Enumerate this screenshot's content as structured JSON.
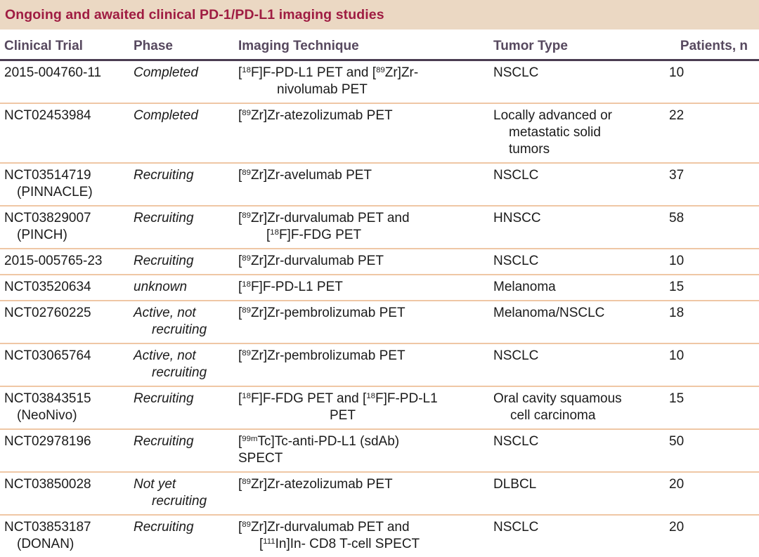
{
  "title": "Ongoing and awaited clinical PD-1/PD-L1 imaging studies",
  "colors": {
    "title_bg": "#ebd8c3",
    "title_text": "#9f1c42",
    "header_text": "#57495f",
    "header_rule": "#4a3c51",
    "row_rule": "#efc7a5",
    "body_text": "#1b1b1b"
  },
  "table": {
    "columns": [
      {
        "key": "trial",
        "label": "Clinical Trial"
      },
      {
        "key": "phase",
        "label": "Phase"
      },
      {
        "key": "technique",
        "label": "Imaging Technique"
      },
      {
        "key": "tumor",
        "label": "Tumor Type"
      },
      {
        "key": "patients",
        "label": "Patients, n"
      }
    ],
    "rows": [
      {
        "trial": [
          [
            "2015-004760-11",
            0
          ]
        ],
        "phase": [
          [
            "Completed",
            0
          ]
        ],
        "technique": [
          [
            "[^18^F]F-PD-L1 PET and [^89^Zr]Zr-",
            0
          ],
          [
            "nivolumab PET",
            55
          ]
        ],
        "tumor": [
          [
            "NSCLC",
            0
          ]
        ],
        "patients": "10"
      },
      {
        "trial": [
          [
            "NCT02453984",
            0
          ]
        ],
        "phase": [
          [
            "Completed",
            0
          ]
        ],
        "technique": [
          [
            "[^89^Zr]Zr-atezolizumab PET",
            0
          ]
        ],
        "tumor": [
          [
            "Locally advanced or",
            0
          ],
          [
            "metastatic solid",
            22
          ],
          [
            "tumors",
            22
          ]
        ],
        "patients": "22"
      },
      {
        "trial": [
          [
            "NCT03514719",
            0
          ],
          [
            "(PINNACLE)",
            18
          ]
        ],
        "phase": [
          [
            "Recruiting",
            0
          ]
        ],
        "technique": [
          [
            "[^89^Zr]Zr-avelumab PET",
            0
          ]
        ],
        "tumor": [
          [
            "NSCLC",
            0
          ]
        ],
        "patients": "37"
      },
      {
        "trial": [
          [
            "NCT03829007",
            0
          ],
          [
            "(PINCH)",
            18
          ]
        ],
        "phase": [
          [
            "Recruiting",
            0
          ]
        ],
        "technique": [
          [
            "[^89^Zr]Zr-durvalumab PET and",
            0
          ],
          [
            "[^18^F]F-FDG PET",
            40
          ]
        ],
        "tumor": [
          [
            "HNSCC",
            0
          ]
        ],
        "patients": "58"
      },
      {
        "trial": [
          [
            "2015-005765-23",
            0
          ]
        ],
        "phase": [
          [
            "Recruiting",
            0
          ]
        ],
        "technique": [
          [
            "[^89^Zr]Zr-durvalumab PET",
            0
          ]
        ],
        "tumor": [
          [
            "NSCLC",
            0
          ]
        ],
        "patients": "10"
      },
      {
        "trial": [
          [
            "NCT03520634",
            0
          ]
        ],
        "phase": [
          [
            "unknown",
            0
          ]
        ],
        "technique": [
          [
            "[^18^F]F-PD-L1 PET",
            0
          ]
        ],
        "tumor": [
          [
            "Melanoma",
            0
          ]
        ],
        "patients": "15"
      },
      {
        "trial": [
          [
            "NCT02760225",
            0
          ]
        ],
        "phase": [
          [
            "Active, not",
            0
          ],
          [
            "recruiting",
            26
          ]
        ],
        "technique": [
          [
            "[^89^Zr]Zr-pembrolizumab PET",
            0
          ]
        ],
        "tumor": [
          [
            "Melanoma/NSCLC",
            0
          ]
        ],
        "patients": "18"
      },
      {
        "trial": [
          [
            "NCT03065764",
            0
          ]
        ],
        "phase": [
          [
            "Active, not",
            0
          ],
          [
            "recruiting",
            26
          ]
        ],
        "technique": [
          [
            "[^89^Zr]Zr-pembrolizumab PET",
            0
          ]
        ],
        "tumor": [
          [
            "NSCLC",
            0
          ]
        ],
        "patients": "10"
      },
      {
        "trial": [
          [
            "NCT03843515",
            0
          ],
          [
            "(NeoNivo)",
            18
          ]
        ],
        "phase": [
          [
            "Recruiting",
            0
          ]
        ],
        "technique": [
          [
            "[^18^F]F-FDG PET and [^18^F]F-PD-L1",
            0
          ],
          [
            "PET",
            130
          ]
        ],
        "tumor": [
          [
            "Oral cavity squamous",
            0
          ],
          [
            "cell carcinoma",
            24
          ]
        ],
        "patients": "15"
      },
      {
        "trial": [
          [
            "NCT02978196",
            0
          ]
        ],
        "phase": [
          [
            "Recruiting",
            0
          ]
        ],
        "technique": [
          [
            "[^99m^Tc]Tc-anti-PD-L1 (sdAb)",
            0
          ],
          [
            "SPECT",
            0
          ]
        ],
        "tumor": [
          [
            "NSCLC",
            0
          ]
        ],
        "patients": "50"
      },
      {
        "trial": [
          [
            "NCT03850028",
            0
          ]
        ],
        "phase": [
          [
            "Not yet",
            0
          ],
          [
            "recruiting",
            26
          ]
        ],
        "technique": [
          [
            "[^89^Zr]Zr-atezolizumab PET",
            0
          ]
        ],
        "tumor": [
          [
            "DLBCL",
            0
          ]
        ],
        "patients": "20"
      },
      {
        "trial": [
          [
            "NCT03853187",
            0
          ],
          [
            "(DONAN)",
            18
          ]
        ],
        "phase": [
          [
            "Recruiting",
            0
          ]
        ],
        "technique": [
          [
            "[^89^Zr]Zr-durvalumab PET and",
            0
          ],
          [
            "[^111^In]In- CD8 T-cell SPECT",
            30
          ]
        ],
        "tumor": [
          [
            "NSCLC",
            0
          ]
        ],
        "patients": "20"
      }
    ]
  }
}
